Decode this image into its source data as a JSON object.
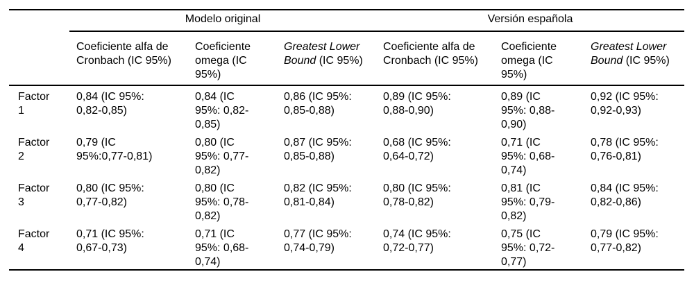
{
  "table": {
    "spanners": [
      {
        "label": "Modelo original"
      },
      {
        "label": "Versión española"
      }
    ],
    "columns": [
      {
        "label": "Coeficiente alfa de\nCronbach (IC 95%)"
      },
      {
        "label": "Coeficiente\nomega (IC\n95%)"
      },
      {
        "italic": "Greatest Lower\nBound",
        "rest": " (IC 95%)"
      },
      {
        "label": "Coeficiente alfa de\nCronbach (IC 95%)"
      },
      {
        "label": "Coeficiente\nomega (IC\n95%)"
      },
      {
        "italic": "Greatest Lower\nBound",
        "rest": " (IC 95%)"
      }
    ],
    "rows": [
      {
        "factor": "Factor\n1",
        "cells": [
          "0,84 (IC 95%:\n0,82-0,85)",
          "0,84 (IC\n95%: 0,82-\n0,85)",
          "0,86 (IC 95%:\n0,85-0,88)",
          "0,89 (IC 95%:\n0,88-0,90)",
          "0,89 (IC\n95%: 0,88-\n0,90)",
          "0,92 (IC 95%:\n0,92-0,93)"
        ]
      },
      {
        "factor": "Factor\n2",
        "cells": [
          "0,79 (IC\n95%:0,77-0,81)",
          "0,80 (IC\n95%: 0,77-\n0,82)",
          "0,87 (IC 95%:\n0,85-0,88)",
          "0,68 (IC 95%:\n0,64-0,72)",
          "0,71 (IC\n95%: 0,68-\n0,74)",
          "0,78 (IC 95%:\n0,76-0,81)"
        ]
      },
      {
        "factor": "Factor\n3",
        "cells": [
          "0,80 (IC 95%:\n0,77-0,82)",
          "0,80 (IC\n95%: 0,78-\n0,82)",
          "0,82 (IC 95%:\n0,81-0,84)",
          "0,80 (IC 95%:\n0,78-0,82)",
          "0,81 (IC\n95%: 0,79-\n0,82)",
          "0,84 (IC 95%:\n0,82-0,86)"
        ]
      },
      {
        "factor": "Factor\n4",
        "cells": [
          "0,71 (IC 95%:\n0,67-0,73)",
          "0,71 (IC\n95%: 0,68-\n0,74)",
          "0,77 (IC 95%:\n0,74-0,79)",
          "0,74 (IC 95%:\n0,72-0,77)",
          "0,75 (IC\n95%: 0,72-\n0,77)",
          "0,79 (IC 95%:\n0,77-0,82)"
        ]
      }
    ]
  }
}
